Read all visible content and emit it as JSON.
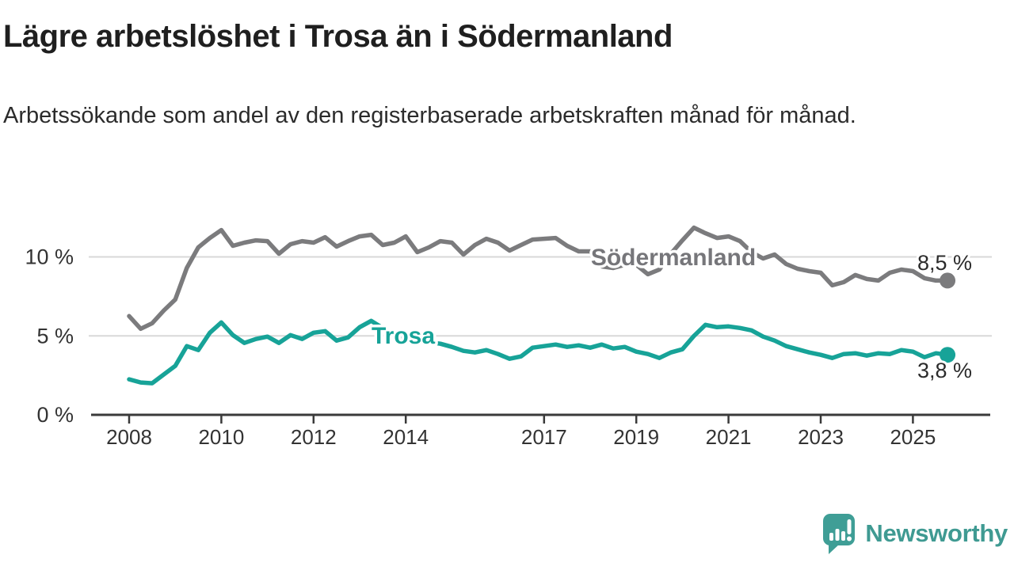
{
  "header": {
    "title": "Lägre arbetslöshet i Trosa än i Södermanland",
    "subtitle": "Arbetssökande som andel av den registerbaserade arbetskraften månad för månad."
  },
  "chart_data": {
    "type": "line",
    "title": "Lägre arbetslöshet i Trosa än i Södermanland",
    "xlabel": "",
    "ylabel": "Arbetssökande som andel av den registerbaserade arbetskraften",
    "x_start": 2008.0,
    "x_step": 0.25,
    "xlim": [
      2007.2,
      2026.7
    ],
    "ylim": [
      0,
      12.5
    ],
    "grid": "horizontal",
    "legend_position": "inline-labels",
    "xticks": [
      2008,
      2010,
      2012,
      2014,
      2017,
      2019,
      2021,
      2023,
      2025
    ],
    "yticks": [
      {
        "value": 0,
        "label": "0 %"
      },
      {
        "value": 5,
        "label": "5 %"
      },
      {
        "value": 10,
        "label": "10 %"
      }
    ],
    "series": [
      {
        "name": "Södermanland",
        "color": "#7b7b7d",
        "end_label": "8,5 %",
        "end_value": 8.5,
        "values": [
          6.25,
          5.45,
          5.8,
          6.6,
          7.3,
          9.3,
          10.6,
          11.2,
          11.7,
          10.7,
          10.9,
          11.05,
          11.0,
          10.2,
          10.8,
          11.0,
          10.9,
          11.25,
          10.65,
          11.0,
          11.3,
          11.4,
          10.75,
          10.9,
          11.3,
          10.3,
          10.6,
          11.0,
          10.9,
          10.15,
          10.75,
          11.15,
          10.9,
          10.4,
          10.75,
          11.1,
          11.15,
          11.2,
          10.7,
          10.35,
          10.35,
          9.4,
          9.3,
          9.5,
          9.5,
          8.9,
          9.2,
          10.2,
          11.05,
          11.85,
          11.5,
          11.2,
          11.3,
          11.0,
          10.3,
          9.9,
          10.15,
          9.55,
          9.25,
          9.1,
          9.0,
          8.2,
          8.4,
          8.85,
          8.6,
          8.5,
          9.0,
          9.2,
          9.1,
          8.65,
          8.5,
          8.5
        ]
      },
      {
        "name": "Trosa",
        "color": "#17a398",
        "end_label": "3,8 %",
        "end_value": 3.8,
        "values": [
          2.25,
          2.05,
          2.0,
          2.55,
          3.1,
          4.35,
          4.1,
          5.2,
          5.85,
          5.05,
          4.55,
          4.8,
          4.95,
          4.55,
          5.05,
          4.8,
          5.2,
          5.3,
          4.7,
          4.9,
          5.55,
          5.95,
          5.5,
          5.0,
          4.9,
          4.7,
          4.6,
          4.5,
          4.3,
          4.05,
          3.95,
          4.1,
          3.85,
          3.55,
          3.7,
          4.25,
          4.35,
          4.45,
          4.3,
          4.4,
          4.25,
          4.45,
          4.2,
          4.3,
          4.0,
          3.85,
          3.6,
          3.95,
          4.15,
          5.0,
          5.7,
          5.55,
          5.6,
          5.5,
          5.35,
          4.95,
          4.7,
          4.35,
          4.15,
          3.95,
          3.8,
          3.6,
          3.85,
          3.9,
          3.75,
          3.9,
          3.85,
          4.1,
          4.0,
          3.65,
          3.9,
          3.8
        ]
      }
    ]
  },
  "branding": {
    "logo_text": "Newsworthy",
    "logo_color": "#3f9e96"
  }
}
